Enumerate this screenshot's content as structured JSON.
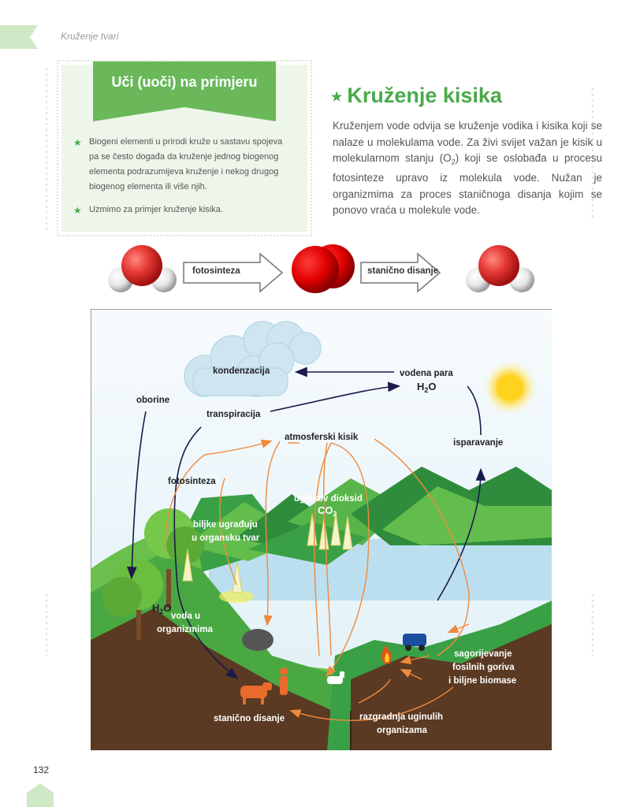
{
  "header": {
    "running_title": "Kruženje tvari"
  },
  "example_box": {
    "title": "Uči (uoči) na primjeru",
    "bullets": [
      "Biogeni elementi u prirodi kruže u sastavu spojeva pa se često događa da kruženje jednog biogenog elementa podrazumijeva kruženje i nekog drugog biogenog elementa ili više njih.",
      "Uzmimo za primjer kruženje kisika."
    ]
  },
  "section": {
    "title": "Kruženje kisika",
    "paragraph_part1": "Kruženjem vode odvija se kruženje vodika i kisika koji se nalaze u molekulama vode. Za živi svijet važan je kisik u molekularnom stanju (O",
    "paragraph_sub": "2",
    "paragraph_part2": ") koji se oslobađa u procesu fotosinteze upravo iz molekula vode. Nužan je organizmima za proces staničnoga disanja kojim se ponovo vraća u molekule vode."
  },
  "molecule_row": {
    "arrow1_label": "fotosinteza",
    "arrow2_label": "stanično disanje"
  },
  "diagram_labels": {
    "kondenzacija": "kondenzacija",
    "vodena_para": "vodena para",
    "h2o_top": "H",
    "h2o_top_sub": "2",
    "h2o_top_o": "O",
    "oborine": "oborine",
    "transpiracija": "transpiracija",
    "atmosferski_kisik": "atmosferski kisik",
    "isparavanje": "isparavanje",
    "fotosinteza": "fotosinteza",
    "ugljikov_dioksid": "ugljikov dioksid",
    "co2": "CO",
    "co2_sub": "2",
    "biljke_1": "biljke ugrađuju",
    "biljke_2": "u organsku tvar",
    "h2o_plant": "H",
    "h2o_plant_sub": "2",
    "h2o_plant_o": "O",
    "voda_1": "voda u",
    "voda_2": "organizmima",
    "sagorijevanje_1": "sagorijevanje",
    "sagorijevanje_2": "fosilnih goriva",
    "sagorijevanje_3": "i biljne biomase",
    "stanicno_disanje": "stanično disanje",
    "razgradnja_1": "razgradnja uginulih",
    "razgradnja_2": "organizama"
  },
  "footer": {
    "page_number": "132"
  },
  "colors": {
    "accent_green": "#4aaa4a",
    "box_bg": "#eef6ea",
    "arrow_orange": "#f08a3c",
    "arrow_navy": "#1c1a4a"
  }
}
